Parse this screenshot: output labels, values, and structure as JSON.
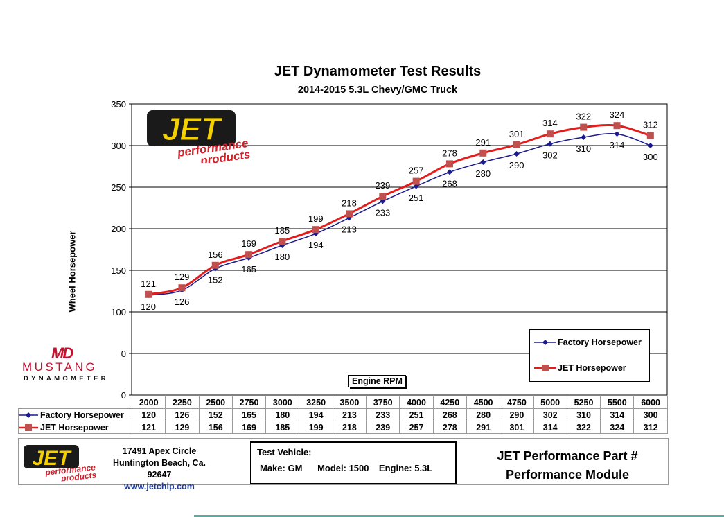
{
  "title": "JET Dynamometer Test Results",
  "subtitle": "2014-2015 5.3L Chevy/GMC Truck",
  "colors": {
    "factory": "#1a1a8c",
    "jet": "#e31c1c",
    "jet_marker": "#c0504d",
    "logo_yellow": "#f5d000",
    "logo_red": "#d0202a",
    "mustang_red": "#c8102e"
  },
  "jet_logo": {
    "big": "JET",
    "line1": "performance",
    "line2": "products"
  },
  "mustang_logo": {
    "mark": "MD",
    "name": "MUSTANG",
    "sub": "DYNAMOMETER"
  },
  "chart_data": {
    "type": "line",
    "title": "JET Dynamometer Test Results",
    "subtitle": "2014-2015 5.3L Chevy/GMC Truck",
    "xlabel": "Engine RPM",
    "ylabel": "Wheel Horsepower",
    "y_ticks": [
      "350",
      "300",
      "250",
      "200",
      "150",
      "100",
      "0",
      "0"
    ],
    "ylim": [
      0,
      350
    ],
    "grid": true,
    "legend_position": "bottom-right",
    "categories": [
      "2000",
      "2250",
      "2500",
      "2750",
      "3000",
      "3250",
      "3500",
      "3750",
      "4000",
      "4250",
      "4500",
      "4750",
      "5000",
      "5250",
      "5500",
      "6000"
    ],
    "series": [
      {
        "name": "Factory Horsepower",
        "values": [
          120,
          126,
          152,
          165,
          180,
          194,
          213,
          233,
          251,
          268,
          280,
          290,
          302,
          310,
          314,
          300
        ]
      },
      {
        "name": "JET Horsepower",
        "values": [
          121,
          129,
          156,
          169,
          185,
          199,
          218,
          239,
          257,
          278,
          291,
          301,
          314,
          322,
          324,
          312
        ]
      }
    ]
  },
  "table": {
    "rpm": [
      "2000",
      "2250",
      "2500",
      "2750",
      "3000",
      "3250",
      "3500",
      "3750",
      "4000",
      "4250",
      "4500",
      "4750",
      "5000",
      "5250",
      "5500",
      "6000"
    ],
    "factory_label": "Factory Horsepower",
    "jet_label": "JET Horsepower"
  },
  "footer": {
    "address1": "17491 Apex Circle",
    "address2": "Huntington Beach, Ca. 92647",
    "website": "www.jetchip.com",
    "vehicle_title": "Test Vehicle:",
    "vehicle_line": "Make: GM      Model: 1500    Engine: 5.3L",
    "part_line1": "JET Performance Part #",
    "part_line2": "Performance Module"
  }
}
